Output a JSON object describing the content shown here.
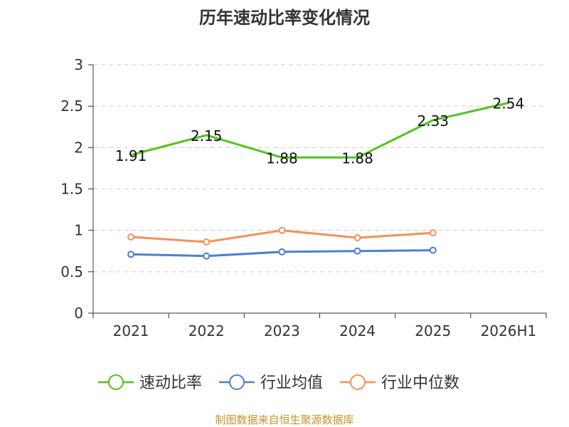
{
  "chart_data": {
    "type": "line",
    "title": "历年速动比率变化情况",
    "categories": [
      "2021",
      "2022",
      "2023",
      "2024",
      "2025",
      "2026H1"
    ],
    "ylim": [
      0,
      3
    ],
    "yticks": [
      "0",
      "0.5",
      "1",
      "1.5",
      "2",
      "2.5",
      "3"
    ],
    "grid": true,
    "legend_position": "bottom",
    "series": [
      {
        "name": "速动比率",
        "color": "#52c41a",
        "values": [
          1.91,
          2.15,
          1.88,
          1.88,
          2.33,
          2.54
        ],
        "labels": [
          "1.91",
          "2.15",
          "1.88",
          "1.88",
          "2.33",
          "2.54"
        ],
        "markers": false
      },
      {
        "name": "行业均值",
        "color": "#4a7fd9",
        "values": [
          0.71,
          0.69,
          0.74,
          0.75,
          0.76,
          null
        ],
        "markers": true
      },
      {
        "name": "行业中位数",
        "color": "#f5905a",
        "values": [
          0.92,
          0.86,
          1.0,
          0.91,
          0.97,
          null
        ],
        "markers": true
      }
    ]
  },
  "source_text": "制图数据来自恒生聚源数据库",
  "colors": {
    "source": "#c8922a",
    "axis": "#333333",
    "grid": "#cccccc"
  }
}
